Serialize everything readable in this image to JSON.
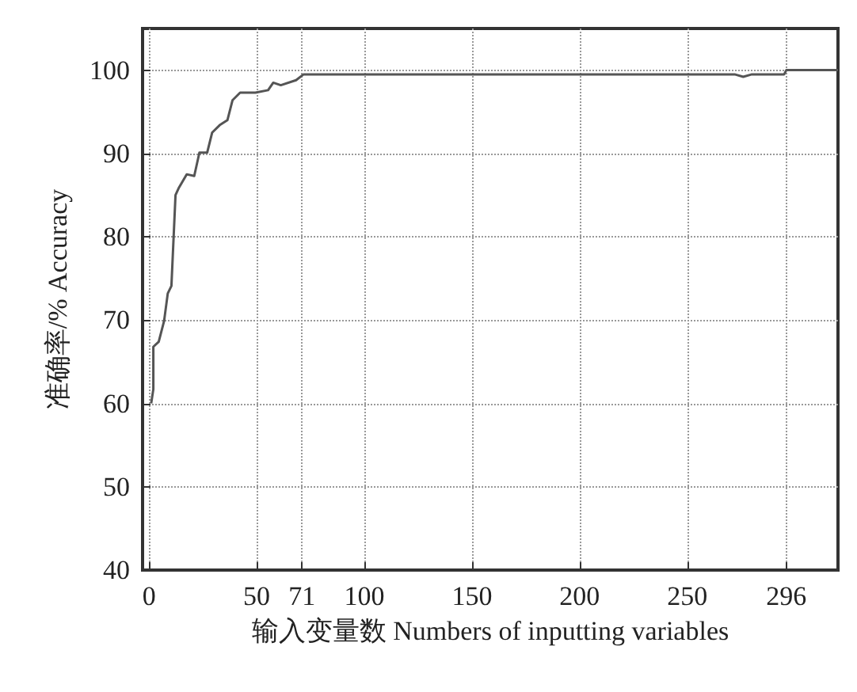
{
  "chart_data": {
    "type": "line",
    "xlabel": "输入变量数 Numbers of inputting variables",
    "ylabel": "准确率/% Accuracy",
    "x": [
      1,
      2,
      2,
      4.5,
      7,
      8.7,
      10.4,
      12.3,
      13.9,
      17.5,
      21,
      23.4,
      27,
      29.3,
      32.8,
      36.4,
      38.8,
      42.3,
      49.4,
      55.3,
      57.7,
      61.2,
      68.3,
      71.8,
      272,
      276,
      280,
      295,
      296,
      320
    ],
    "series": [
      {
        "color": "#555555",
        "values": [
          60,
          61.7,
          66.8,
          67.4,
          69.9,
          73.2,
          74.1,
          85,
          85.9,
          87.5,
          87.3,
          90.1,
          90.1,
          92.5,
          93.4,
          94,
          96.4,
          97.3,
          97.3,
          97.6,
          98.5,
          98.2,
          98.8,
          99.5,
          99.5,
          99.2,
          99.5,
          99.5,
          100,
          100
        ]
      }
    ],
    "xlim": [
      -3,
      320
    ],
    "ylim": [
      40,
      105
    ],
    "xticks": [
      0,
      50,
      71,
      100,
      150,
      200,
      250,
      296
    ],
    "yticks": [
      40,
      50,
      60,
      70,
      80,
      90,
      100
    ],
    "grid": true,
    "marker": "none",
    "line_style": "solid"
  }
}
